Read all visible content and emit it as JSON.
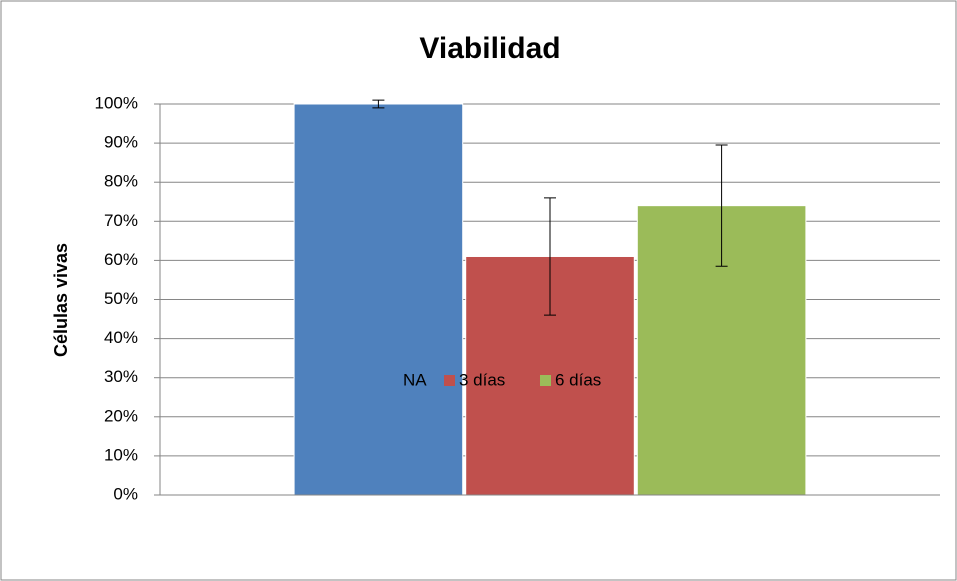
{
  "chart_data": {
    "type": "bar",
    "title": "Viabilidad",
    "ylabel": "Células vivas",
    "categories": [
      null
    ],
    "series": [
      {
        "name": "NA",
        "color": "#4f81bd",
        "values": [
          100
        ],
        "errors": [
          1
        ]
      },
      {
        "name": "3 días",
        "color": "#c0504d",
        "values": [
          61
        ],
        "errors": [
          15
        ]
      },
      {
        "name": "6 días",
        "color": "#9bbb59",
        "values": [
          74
        ],
        "errors": [
          15.5
        ]
      }
    ],
    "ylim": [
      0,
      100
    ],
    "yticks": [
      {
        "value": 0,
        "label": "0%"
      },
      {
        "value": 10,
        "label": "10%"
      },
      {
        "value": 20,
        "label": "20%"
      },
      {
        "value": 30,
        "label": "30%"
      },
      {
        "value": 40,
        "label": "40%"
      },
      {
        "value": 50,
        "label": "50%"
      },
      {
        "value": 60,
        "label": "60%"
      },
      {
        "value": 70,
        "label": "70%"
      },
      {
        "value": 80,
        "label": "80%"
      },
      {
        "value": 90,
        "label": "90%"
      },
      {
        "value": 100,
        "label": "100%"
      }
    ],
    "grid": true,
    "legend": "bottom"
  }
}
